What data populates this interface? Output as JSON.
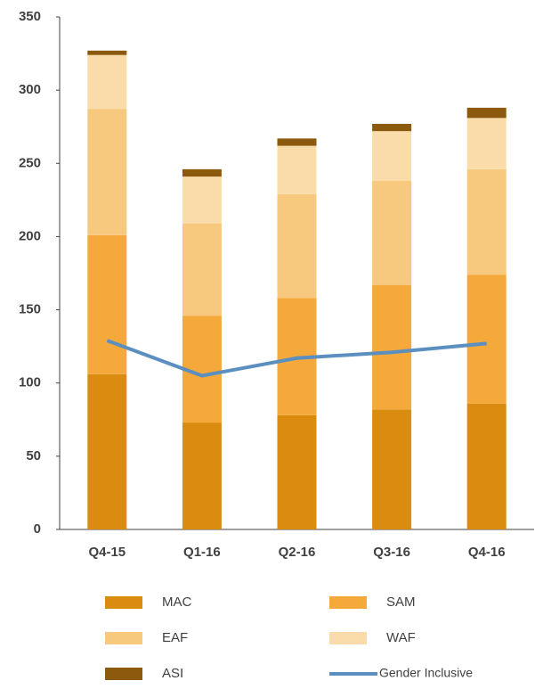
{
  "chart_data": {
    "type": "bar",
    "stacked": true,
    "categories": [
      "Q4-15",
      "Q1-16",
      "Q2-16",
      "Q3-16",
      "Q4-16"
    ],
    "series": [
      {
        "name": "MAC",
        "color": "#d98c0f",
        "values": [
          106,
          73,
          78,
          82,
          86
        ]
      },
      {
        "name": "SAM",
        "color": "#f4a93a",
        "values": [
          95,
          73,
          80,
          85,
          88
        ]
      },
      {
        "name": "EAF",
        "color": "#f7c97f",
        "values": [
          86,
          63,
          71,
          71,
          72
        ]
      },
      {
        "name": "WAF",
        "color": "#fadcaa",
        "values": [
          37,
          32,
          33,
          34,
          35
        ]
      },
      {
        "name": "ASI",
        "color": "#8b5a0e",
        "values": [
          3,
          5,
          5,
          5,
          7
        ]
      },
      {
        "name": "Gender Inclusive",
        "type": "line",
        "color": "#5b8fc0",
        "values": [
          129,
          105,
          117,
          121,
          127
        ]
      }
    ],
    "ylim": [
      0,
      350
    ],
    "yticks": [
      0,
      50,
      100,
      150,
      200,
      250,
      300,
      350
    ],
    "grid": false
  }
}
